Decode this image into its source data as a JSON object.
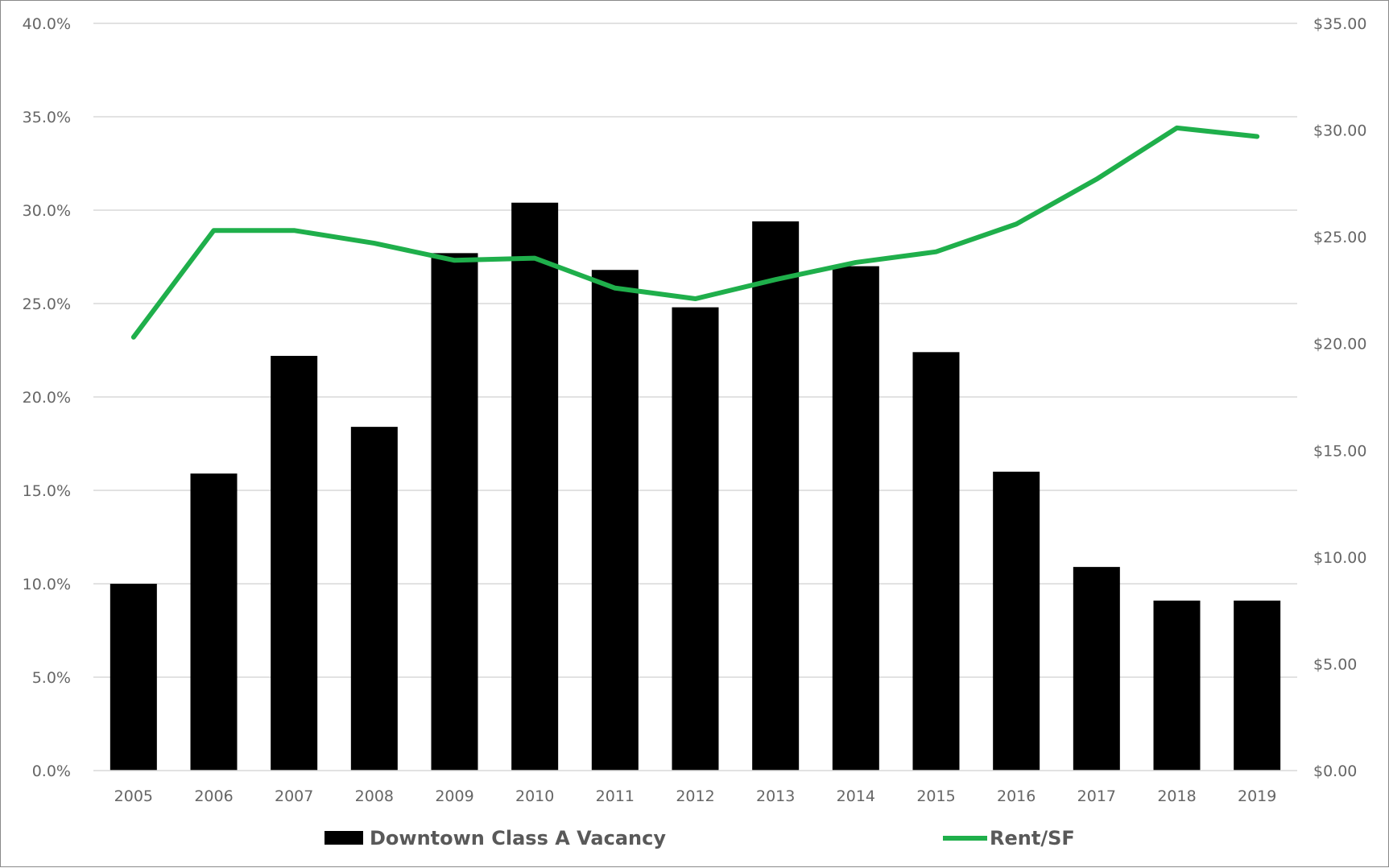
{
  "chart_data": {
    "type": "bar",
    "categories": [
      "2005",
      "2006",
      "2007",
      "2008",
      "2009",
      "2010",
      "2011",
      "2012",
      "2013",
      "2014",
      "2015",
      "2016",
      "2017",
      "2018",
      "2019"
    ],
    "series": [
      {
        "name": "Downtown Class A Vacancy",
        "type": "bar",
        "axis": "left",
        "color": "#000000",
        "values": [
          10.0,
          15.9,
          22.2,
          18.4,
          27.7,
          30.4,
          26.8,
          24.8,
          29.4,
          27.0,
          22.4,
          16.0,
          10.9,
          9.1,
          9.1
        ]
      },
      {
        "name": "Rent/SF",
        "type": "line",
        "axis": "right",
        "color": "#1faf4b",
        "values": [
          20.3,
          25.3,
          25.3,
          24.7,
          23.9,
          24.0,
          22.6,
          22.1,
          23.0,
          23.8,
          24.3,
          25.6,
          27.7,
          30.1,
          29.7
        ]
      }
    ],
    "y_left": {
      "ylim": [
        0,
        40
      ],
      "ticks": [
        0,
        5,
        10,
        15,
        20,
        25,
        30,
        35,
        40
      ],
      "tick_labels": [
        "0.0%",
        "5.0%",
        "10.0%",
        "15.0%",
        "20.0%",
        "25.0%",
        "30.0%",
        "35.0%",
        "40.0%"
      ]
    },
    "y_right": {
      "ylim": [
        0,
        35
      ],
      "ticks": [
        0,
        5,
        10,
        15,
        20,
        25,
        30,
        35
      ],
      "tick_labels": [
        "$0.00",
        "$5.00",
        "$10.00",
        "$15.00",
        "$20.00",
        "$25.00",
        "$30.00",
        "$35.00"
      ]
    },
    "grid": true,
    "legend_position": "bottom"
  }
}
